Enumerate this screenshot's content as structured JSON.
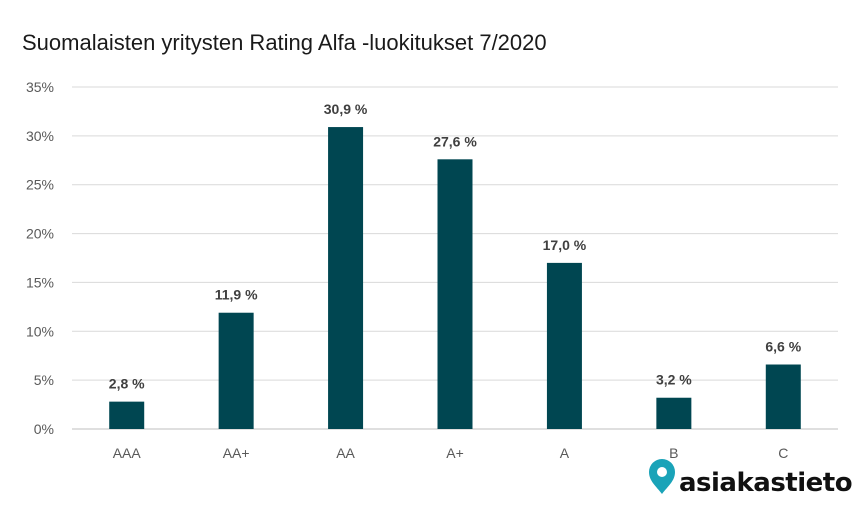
{
  "chart_data": {
    "type": "bar",
    "title": "Suomalaisten yritysten Rating Alfa -luokitukset 7/2020",
    "categories": [
      "AAA",
      "AA+",
      "AA",
      "A+",
      "A",
      "B",
      "C"
    ],
    "values": [
      2.8,
      11.9,
      30.9,
      27.6,
      17.0,
      3.2,
      6.6
    ],
    "data_labels": [
      "2,8 %",
      "11,9 %",
      "30,9 %",
      "27,6 %",
      "17,0 %",
      "3,2 %",
      "6,6 %"
    ],
    "y_ticks": [
      "0%",
      "5%",
      "10%",
      "15%",
      "20%",
      "25%",
      "30%",
      "35%"
    ],
    "ylim": [
      0,
      35
    ],
    "xlabel": "",
    "ylabel": "",
    "bar_color": "#004651",
    "grid": true,
    "legend": "none"
  },
  "logo": {
    "text": "asiakastieto",
    "icon": "location-pin-icon",
    "color": "#1aa3b8"
  }
}
